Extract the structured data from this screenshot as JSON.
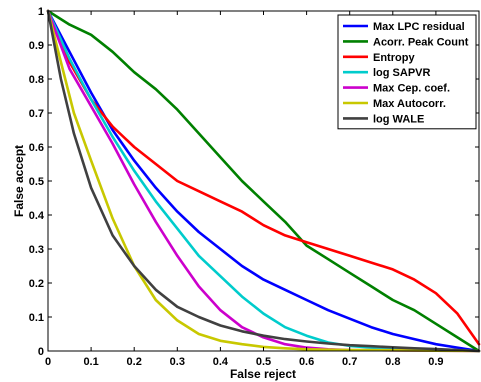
{
  "chart_data": {
    "type": "line",
    "title": "",
    "xlabel": "False reject",
    "ylabel": "False accept",
    "xlim": [
      0,
      1
    ],
    "ylim": [
      0,
      1
    ],
    "x_ticks": [
      "0",
      "0.1",
      "0.2",
      "0.3",
      "0.4",
      "0.5",
      "0.6",
      "0.7",
      "0.8",
      "0.9"
    ],
    "x_tick_values": [
      0,
      0.1,
      0.2,
      0.3,
      0.4,
      0.5,
      0.6,
      0.7,
      0.8,
      0.9
    ],
    "y_ticks": [
      "0",
      "0.1",
      "0.2",
      "0.3",
      "0.4",
      "0.5",
      "0.6",
      "0.7",
      "0.8",
      "0.9",
      "1"
    ],
    "y_tick_values": [
      0,
      0.1,
      0.2,
      0.3,
      0.4,
      0.5,
      0.6,
      0.7,
      0.8,
      0.9,
      1
    ],
    "grid": false,
    "legend_position": "top-right",
    "series": [
      {
        "name": "Max LPC residual",
        "color": "#0000ff",
        "points": [
          [
            0,
            1
          ],
          [
            0.05,
            0.88
          ],
          [
            0.1,
            0.76
          ],
          [
            0.15,
            0.65
          ],
          [
            0.2,
            0.56
          ],
          [
            0.25,
            0.48
          ],
          [
            0.3,
            0.41
          ],
          [
            0.35,
            0.35
          ],
          [
            0.4,
            0.3
          ],
          [
            0.45,
            0.25
          ],
          [
            0.5,
            0.21
          ],
          [
            0.55,
            0.18
          ],
          [
            0.6,
            0.15
          ],
          [
            0.65,
            0.12
          ],
          [
            0.7,
            0.095
          ],
          [
            0.75,
            0.07
          ],
          [
            0.8,
            0.05
          ],
          [
            0.85,
            0.035
          ],
          [
            0.9,
            0.02
          ],
          [
            0.95,
            0.01
          ],
          [
            1,
            0
          ]
        ]
      },
      {
        "name": "Acorr. Peak Count",
        "color": "#008000",
        "points": [
          [
            0,
            1
          ],
          [
            0.05,
            0.96
          ],
          [
            0.1,
            0.93
          ],
          [
            0.15,
            0.88
          ],
          [
            0.2,
            0.82
          ],
          [
            0.25,
            0.77
          ],
          [
            0.3,
            0.71
          ],
          [
            0.35,
            0.64
          ],
          [
            0.4,
            0.57
          ],
          [
            0.45,
            0.5
          ],
          [
            0.5,
            0.44
          ],
          [
            0.55,
            0.38
          ],
          [
            0.6,
            0.31
          ],
          [
            0.65,
            0.27
          ],
          [
            0.7,
            0.23
          ],
          [
            0.75,
            0.19
          ],
          [
            0.8,
            0.15
          ],
          [
            0.85,
            0.12
          ],
          [
            0.9,
            0.08
          ],
          [
            0.95,
            0.04
          ],
          [
            1,
            0
          ]
        ]
      },
      {
        "name": "Entropy",
        "color": "#ff0000",
        "points": [
          [
            0,
            1
          ],
          [
            0.05,
            0.85
          ],
          [
            0.1,
            0.74
          ],
          [
            0.15,
            0.66
          ],
          [
            0.2,
            0.6
          ],
          [
            0.25,
            0.55
          ],
          [
            0.3,
            0.5
          ],
          [
            0.35,
            0.47
          ],
          [
            0.4,
            0.44
          ],
          [
            0.45,
            0.41
          ],
          [
            0.5,
            0.37
          ],
          [
            0.55,
            0.34
          ],
          [
            0.6,
            0.32
          ],
          [
            0.65,
            0.3
          ],
          [
            0.7,
            0.28
          ],
          [
            0.75,
            0.26
          ],
          [
            0.8,
            0.24
          ],
          [
            0.85,
            0.21
          ],
          [
            0.9,
            0.17
          ],
          [
            0.95,
            0.11
          ],
          [
            1,
            0.02
          ]
        ]
      },
      {
        "name": "log SAPVR",
        "color": "#00cccc",
        "points": [
          [
            0,
            1
          ],
          [
            0.05,
            0.86
          ],
          [
            0.1,
            0.74
          ],
          [
            0.15,
            0.63
          ],
          [
            0.2,
            0.53
          ],
          [
            0.25,
            0.44
          ],
          [
            0.3,
            0.36
          ],
          [
            0.35,
            0.28
          ],
          [
            0.4,
            0.22
          ],
          [
            0.45,
            0.16
          ],
          [
            0.5,
            0.11
          ],
          [
            0.55,
            0.07
          ],
          [
            0.6,
            0.045
          ],
          [
            0.65,
            0.025
          ],
          [
            0.7,
            0.015
          ],
          [
            0.75,
            0.01
          ],
          [
            0.8,
            0.007
          ],
          [
            0.85,
            0.005
          ],
          [
            0.9,
            0.003
          ],
          [
            0.95,
            0.002
          ],
          [
            1,
            0
          ]
        ]
      },
      {
        "name": "Max Cep. coef.",
        "color": "#cc00cc",
        "points": [
          [
            0,
            1
          ],
          [
            0.05,
            0.83
          ],
          [
            0.1,
            0.72
          ],
          [
            0.15,
            0.61
          ],
          [
            0.2,
            0.49
          ],
          [
            0.25,
            0.38
          ],
          [
            0.3,
            0.28
          ],
          [
            0.35,
            0.19
          ],
          [
            0.4,
            0.12
          ],
          [
            0.45,
            0.07
          ],
          [
            0.5,
            0.04
          ],
          [
            0.55,
            0.02
          ],
          [
            0.6,
            0.01
          ],
          [
            0.65,
            0.005
          ],
          [
            0.7,
            0.003
          ],
          [
            0.8,
            0.002
          ],
          [
            0.9,
            0.001
          ],
          [
            1,
            0
          ]
        ]
      },
      {
        "name": "Max Autocorr.",
        "color": "#c8c800",
        "points": [
          [
            0,
            1
          ],
          [
            0.03,
            0.85
          ],
          [
            0.06,
            0.7
          ],
          [
            0.1,
            0.56
          ],
          [
            0.15,
            0.39
          ],
          [
            0.2,
            0.25
          ],
          [
            0.25,
            0.15
          ],
          [
            0.3,
            0.09
          ],
          [
            0.35,
            0.05
          ],
          [
            0.4,
            0.03
          ],
          [
            0.45,
            0.02
          ],
          [
            0.5,
            0.012
          ],
          [
            0.55,
            0.008
          ],
          [
            0.6,
            0.005
          ],
          [
            0.7,
            0.003
          ],
          [
            0.8,
            0.002
          ],
          [
            0.9,
            0.001
          ],
          [
            1,
            0
          ]
        ]
      },
      {
        "name": "log WALE",
        "color": "#404040",
        "points": [
          [
            0,
            1
          ],
          [
            0.03,
            0.8
          ],
          [
            0.06,
            0.64
          ],
          [
            0.1,
            0.48
          ],
          [
            0.15,
            0.34
          ],
          [
            0.2,
            0.25
          ],
          [
            0.25,
            0.18
          ],
          [
            0.3,
            0.13
          ],
          [
            0.35,
            0.1
          ],
          [
            0.4,
            0.075
          ],
          [
            0.45,
            0.058
          ],
          [
            0.5,
            0.045
          ],
          [
            0.55,
            0.035
          ],
          [
            0.6,
            0.028
          ],
          [
            0.65,
            0.022
          ],
          [
            0.7,
            0.017
          ],
          [
            0.75,
            0.014
          ],
          [
            0.8,
            0.011
          ],
          [
            0.85,
            0.008
          ],
          [
            0.9,
            0.006
          ],
          [
            0.95,
            0.003
          ],
          [
            1,
            0
          ]
        ]
      }
    ]
  }
}
